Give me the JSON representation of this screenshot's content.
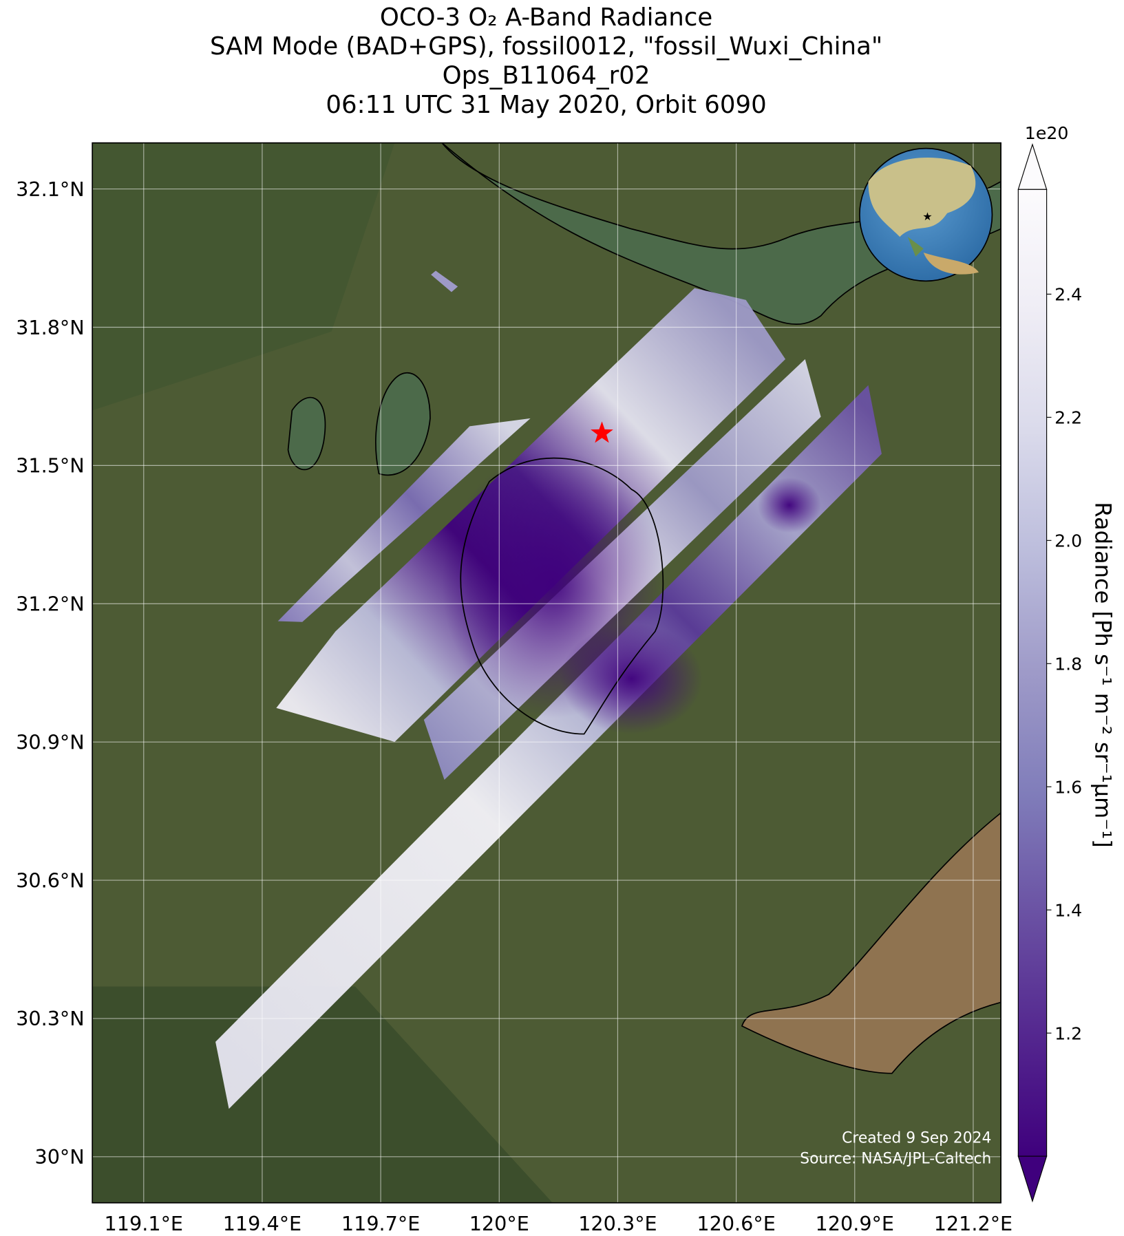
{
  "chart_data": {
    "type": "map",
    "title": [
      "OCO-3 O₂ A-Band Radiance",
      "SAM Mode (BAD+GPS), fossil0012, \"fossil_Wuxi_China\"",
      "Ops_B11064_r02",
      "06:11 UTC 31 May 2020, Orbit 6090"
    ],
    "xlim": [
      118.97,
      121.27
    ],
    "ylim": [
      29.9,
      32.2
    ],
    "xticks": [
      {
        "value": 119.1,
        "label": "119.1°E"
      },
      {
        "value": 119.4,
        "label": "119.4°E"
      },
      {
        "value": 119.7,
        "label": "119.7°E"
      },
      {
        "value": 120,
        "label": "120°E"
      },
      {
        "value": 120.3,
        "label": "120.3°E"
      },
      {
        "value": 120.6,
        "label": "120.6°E"
      },
      {
        "value": 120.9,
        "label": "120.9°E"
      },
      {
        "value": 121.2,
        "label": "121.2°E"
      }
    ],
    "yticks": [
      {
        "value": 30,
        "label": "30°N"
      },
      {
        "value": 30.3,
        "label": "30.3°N"
      },
      {
        "value": 30.6,
        "label": "30.6°N"
      },
      {
        "value": 30.9,
        "label": "30.9°N"
      },
      {
        "value": 31.2,
        "label": "31.2°N"
      },
      {
        "value": 31.5,
        "label": "31.5°N"
      },
      {
        "value": 31.8,
        "label": "31.8°N"
      },
      {
        "value": 32.1,
        "label": "32.1°N"
      }
    ],
    "grid": true,
    "site": {
      "lon": 120.26,
      "lat": 31.57,
      "color": "#ff0000"
    },
    "colorbar": {
      "label": "Radiance [Ph s⁻¹ m⁻² sr⁻¹μm⁻¹]",
      "offset_label": "1e20",
      "lim": [
        1.0,
        2.57
      ],
      "ticks": [
        1.2,
        1.4,
        1.6,
        1.8,
        {
          "value": 2,
          "label": "2.0"
        },
        2.2,
        2.4
      ],
      "colors": [
        "#3f007d",
        "#54278f",
        "#6a51a3",
        "#807dba",
        "#9e9ac8",
        "#bcbddc",
        "#dadaeb",
        "#efedf5",
        "#fcfbfd"
      ]
    },
    "credits": [
      "Created 9 Sep 2024",
      "Source: NASA/JPL-Caltech"
    ]
  }
}
